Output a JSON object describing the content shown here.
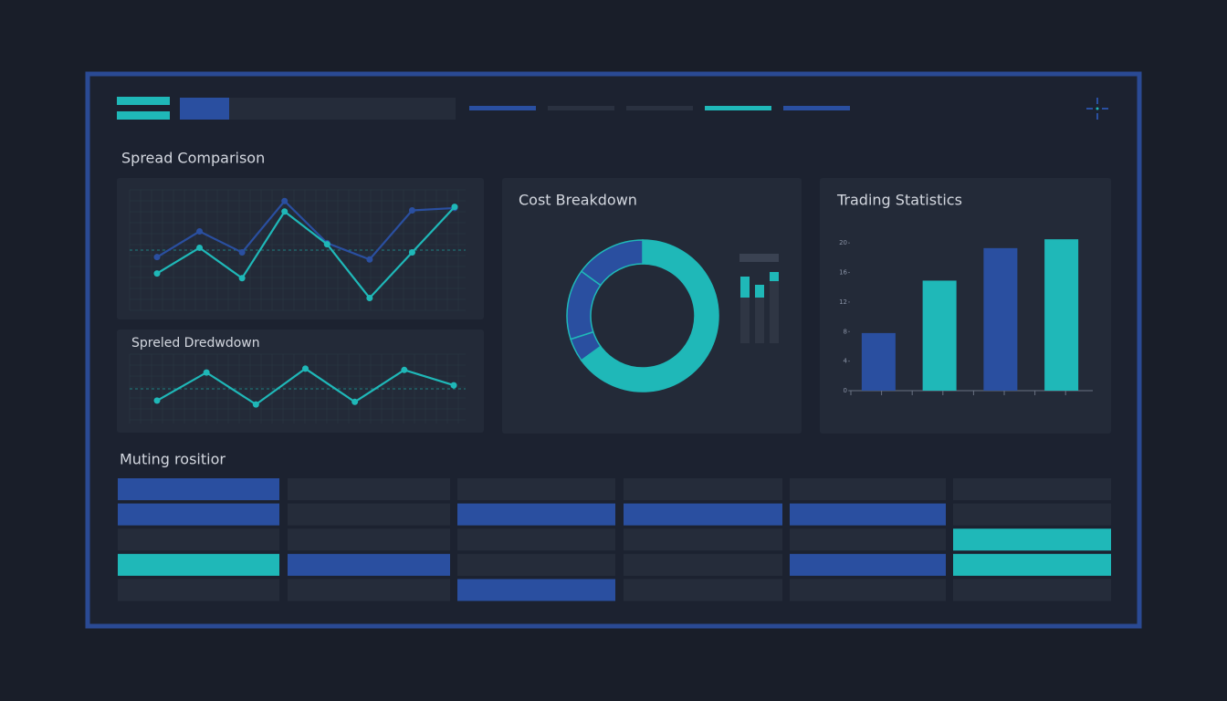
{
  "sections": [
    "Spread Comparison",
    "Muting rositior"
  ],
  "chart_data": [
    {
      "type": "line",
      "x": [
        0,
        1,
        2,
        3,
        4,
        5,
        6,
        7
      ],
      "xlim": [
        0,
        7
      ],
      "ylim": [
        0,
        10
      ],
      "grid": true,
      "series": [
        {
          "color": "#2a4fa0",
          "values": [
            4.4,
            6.6,
            4.8,
            9.2,
            5.6,
            4.2,
            8.4,
            8.6
          ]
        },
        {
          "color": "#1fb8b8",
          "values": [
            3.0,
            5.2,
            2.6,
            8.3,
            5.5,
            0.9,
            4.8,
            8.7
          ]
        }
      ]
    },
    {
      "type": "line",
      "title": "Spreled Dredwdown",
      "x": [
        0,
        1,
        2,
        3,
        4,
        5,
        6
      ],
      "xlim": [
        0,
        6
      ],
      "ylim": [
        0,
        10
      ],
      "grid": true,
      "series": [
        {
          "color": "#1fb8b8",
          "values": [
            3.3,
            7.7,
            2.7,
            8.3,
            3.1,
            8.1,
            5.7
          ]
        }
      ]
    },
    {
      "type": "pie",
      "title": "Cost Breakdown",
      "values": [
        65,
        5,
        15,
        15
      ],
      "colors": [
        "#1fb8b8",
        "#2a4fa0",
        "#2a4fa0",
        "#2a4fa0"
      ]
    },
    {
      "type": "bar",
      "title": "Trading Statistics",
      "categories": [
        null,
        null,
        null,
        null
      ],
      "values": [
        7.8,
        14.9,
        19.3,
        20.5
      ],
      "colors": [
        "#2a4fa0",
        "#1fb8b8",
        "#2a4fa0",
        "#1fb8b8"
      ],
      "ylim": [
        0,
        22
      ],
      "yticks": [
        0,
        4,
        8,
        12,
        16,
        20
      ]
    }
  ]
}
